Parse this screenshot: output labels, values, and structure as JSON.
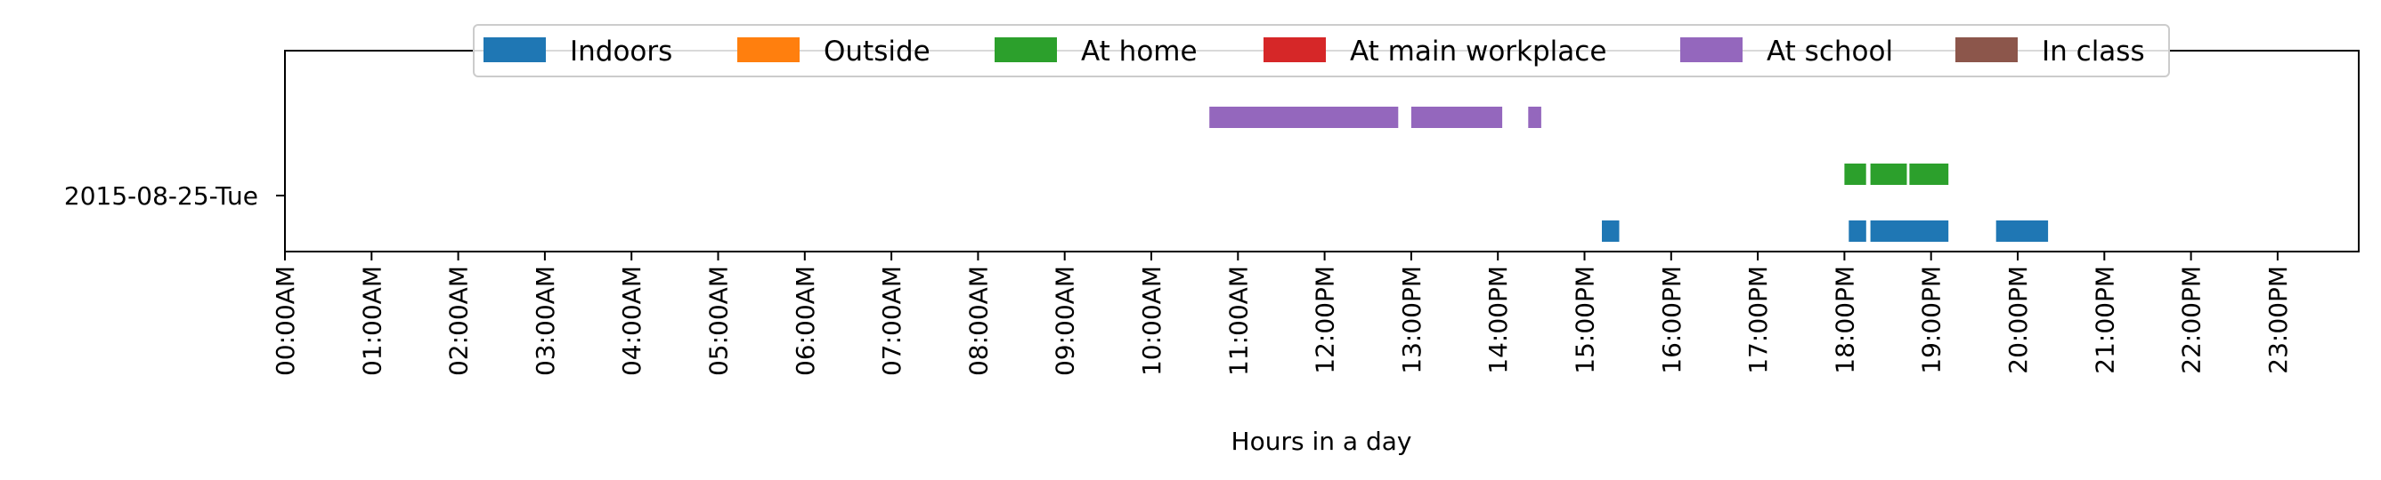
{
  "chart_data": {
    "type": "timeline",
    "xlabel": "Hours in a day",
    "ylabel": "",
    "xlim": [
      0,
      24
    ],
    "x_ticks": [
      "00:00AM",
      "01:00AM",
      "02:00AM",
      "03:00AM",
      "04:00AM",
      "05:00AM",
      "06:00AM",
      "07:00AM",
      "08:00AM",
      "09:00AM",
      "10:00AM",
      "11:00AM",
      "12:00PM",
      "13:00PM",
      "14:00PM",
      "15:00PM",
      "16:00PM",
      "17:00PM",
      "18:00PM",
      "19:00PM",
      "20:00PM",
      "21:00PM",
      "22:00PM",
      "23:00PM"
    ],
    "y_categories": [
      "2015-08-25-Tue"
    ],
    "legend_position": "top-center",
    "grid": false,
    "series": [
      {
        "name": "Indoors",
        "color": "#1f77b4",
        "lane": 0,
        "intervals": [
          [
            15.2,
            15.4
          ],
          [
            18.05,
            18.25
          ],
          [
            18.3,
            19.2
          ],
          [
            19.75,
            20.35
          ]
        ]
      },
      {
        "name": "Outside",
        "color": "#ff7f0e",
        "lane": 1,
        "intervals": []
      },
      {
        "name": "At home",
        "color": "#2ca02c",
        "lane": 2,
        "intervals": [
          [
            18.0,
            18.25
          ],
          [
            18.3,
            18.72
          ],
          [
            18.75,
            19.2
          ]
        ]
      },
      {
        "name": "At main workplace",
        "color": "#d62728",
        "lane": 3,
        "intervals": []
      },
      {
        "name": "At school",
        "color": "#9467bd",
        "lane": 4,
        "intervals": [
          [
            10.67,
            12.85
          ],
          [
            13.0,
            14.05
          ],
          [
            14.35,
            14.5
          ]
        ]
      },
      {
        "name": "In class",
        "color": "#8c564b",
        "lane": 5,
        "intervals": []
      }
    ]
  }
}
